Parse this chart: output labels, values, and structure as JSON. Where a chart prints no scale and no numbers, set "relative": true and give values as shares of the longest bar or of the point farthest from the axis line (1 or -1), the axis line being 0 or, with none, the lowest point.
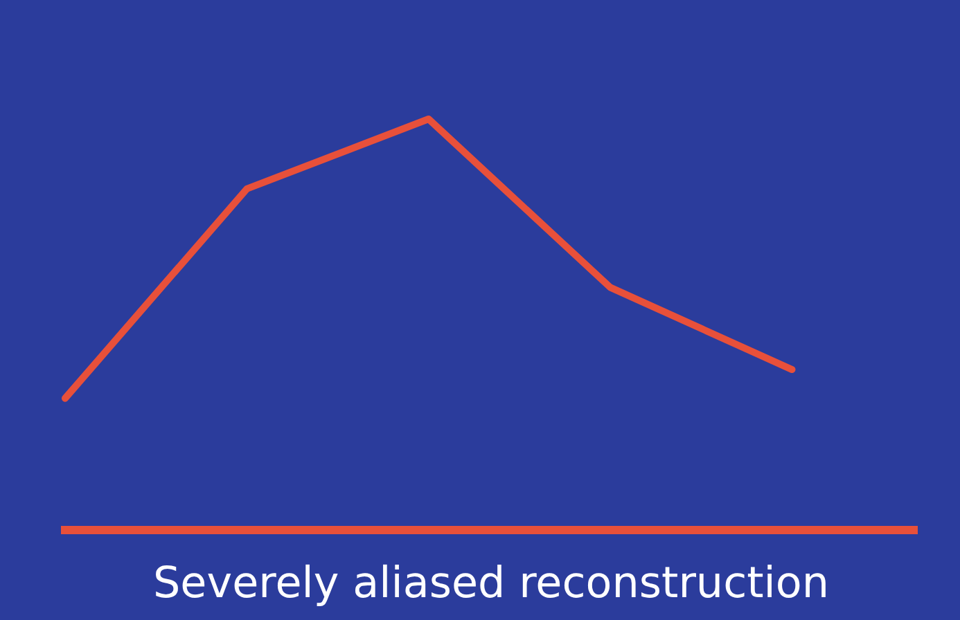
{
  "chart_data": {
    "type": "line",
    "relative": true,
    "categories": [
      null,
      null,
      null,
      null,
      null
    ],
    "series": [
      {
        "color": "#e8503a",
        "values": [
          0.32,
          0.83,
          1,
          0.59,
          0.39
        ]
      }
    ],
    "xlabel": "Severely aliased reconstruction",
    "grid": false,
    "legend": false,
    "marker": "none",
    "line_style": "solid"
  }
}
